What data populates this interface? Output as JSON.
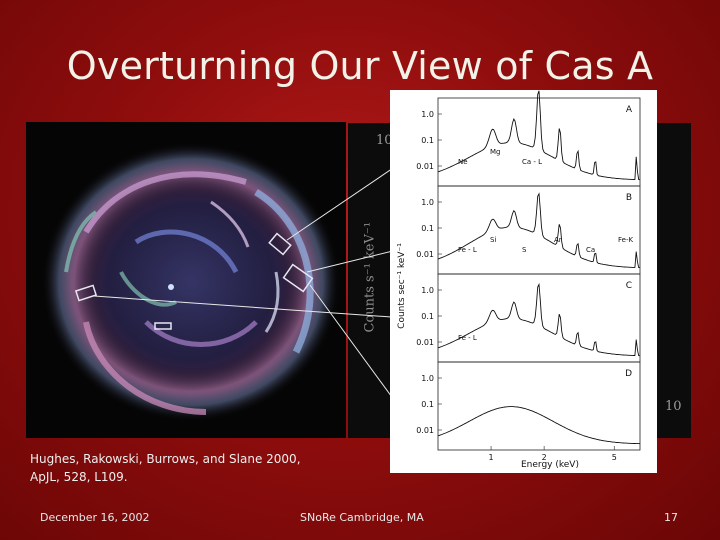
{
  "slide": {
    "title": "Overturning Our View of Cas A",
    "citation_line1": "Hughes, Rakowski, Burrows, and Slane 2000,",
    "citation_line2": "ApJL, 528, L109.",
    "footer_date": "December 16, 2002",
    "footer_venue": "SNoRe Cambridge, MA",
    "footer_page": "17",
    "colors": {
      "background": "#8f0d0d",
      "title": "#f2f2e8"
    }
  },
  "background_plot": {
    "ylabel": "Counts s⁻¹ keV⁻¹",
    "tick_left": "10",
    "tick_right": "10"
  },
  "chart_data": {
    "type": "line",
    "panels": [
      "A",
      "B",
      "C",
      "D"
    ],
    "xlabel": "Energy (keV)",
    "ylabel": "Counts sec⁻¹ keV⁻¹",
    "x_ticks": [
      "1",
      "2",
      "5"
    ],
    "y_ticks": [
      "1.0",
      "0.1",
      "0.01"
    ],
    "annotations": {
      "A": [
        "Ne",
        "Mg",
        "Ca - L"
      ],
      "B": [
        "Fe - L",
        "Si",
        "S",
        "Ar",
        "Ca",
        "Fe-K"
      ],
      "C": [
        "Fe - L"
      ],
      "D": []
    }
  }
}
